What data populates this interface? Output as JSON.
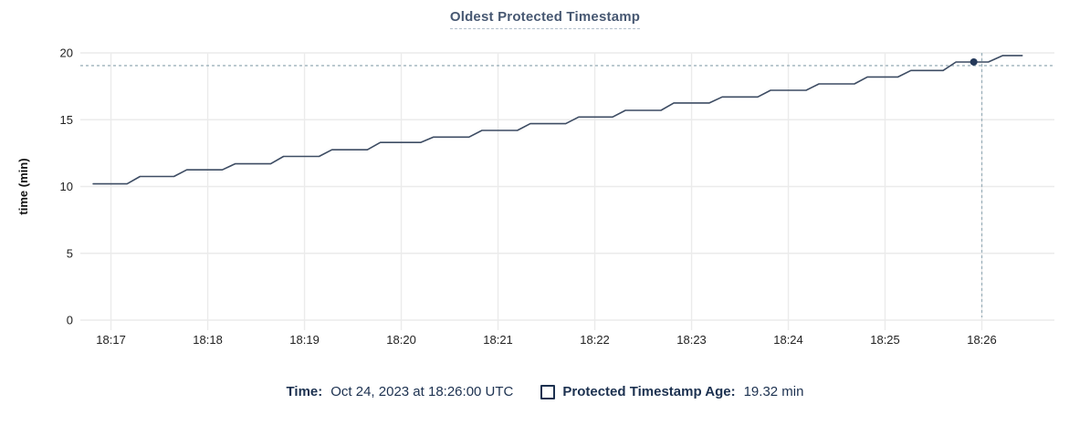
{
  "chart_data": {
    "type": "line",
    "title": "Oldest Protected Timestamp",
    "xlabel": "",
    "ylabel": "time (min)",
    "ylim": [
      0,
      20
    ],
    "y_ticks": [
      0,
      5,
      10,
      15,
      20
    ],
    "x_ticks": [
      "18:17",
      "18:18",
      "18:19",
      "18:20",
      "18:21",
      "18:22",
      "18:23",
      "18:24",
      "18:25",
      "18:26"
    ],
    "x_range": [
      "18:16:41",
      "18:26:45"
    ],
    "grid": true,
    "legend_position": "bottom",
    "series": [
      {
        "name": "Protected Timestamp Age",
        "unit": "min",
        "style": "step",
        "points": [
          [
            "18:16:49",
            10.2
          ],
          [
            "18:17:10",
            10.2
          ],
          [
            "18:17:18",
            10.75
          ],
          [
            "18:17:39",
            10.75
          ],
          [
            "18:17:47",
            11.25
          ],
          [
            "18:18:09",
            11.25
          ],
          [
            "18:18:17",
            11.7
          ],
          [
            "18:18:39",
            11.7
          ],
          [
            "18:18:47",
            12.25
          ],
          [
            "18:19:09",
            12.25
          ],
          [
            "18:19:17",
            12.75
          ],
          [
            "18:19:39",
            12.75
          ],
          [
            "18:19:47",
            13.3
          ],
          [
            "18:20:12",
            13.3
          ],
          [
            "18:20:20",
            13.7
          ],
          [
            "18:20:42",
            13.7
          ],
          [
            "18:20:50",
            14.2
          ],
          [
            "18:21:12",
            14.2
          ],
          [
            "18:21:20",
            14.7
          ],
          [
            "18:21:42",
            14.7
          ],
          [
            "18:21:50",
            15.2
          ],
          [
            "18:22:11",
            15.2
          ],
          [
            "18:22:19",
            15.7
          ],
          [
            "18:22:41",
            15.7
          ],
          [
            "18:22:49",
            16.25
          ],
          [
            "18:23:11",
            16.25
          ],
          [
            "18:23:19",
            16.7
          ],
          [
            "18:23:41",
            16.7
          ],
          [
            "18:23:49",
            17.2
          ],
          [
            "18:24:11",
            17.2
          ],
          [
            "18:24:19",
            17.68
          ],
          [
            "18:24:41",
            17.68
          ],
          [
            "18:24:49",
            18.2
          ],
          [
            "18:25:08",
            18.2
          ],
          [
            "18:25:16",
            18.68
          ],
          [
            "18:25:36",
            18.68
          ],
          [
            "18:25:44",
            19.32
          ],
          [
            "18:26:04",
            19.32
          ],
          [
            "18:26:13",
            19.8
          ],
          [
            "18:26:25",
            19.8
          ]
        ]
      }
    ],
    "crosshair": {
      "time": "18:26:00",
      "hover_value": 19.05,
      "point": {
        "time": "18:25:55",
        "value": 19.32
      }
    }
  },
  "legend": {
    "time_label": "Time:",
    "time_value": "Oct 24, 2023 at 18:26:00 UTC",
    "series_label": "Protected Timestamp Age:",
    "series_value": "19.32 min"
  },
  "colors": {
    "background": "#ffffff",
    "title": "#475872",
    "title_underline": "#b3c0cc",
    "line": "#3d4c63",
    "dot": "#24395a",
    "grid": "#ebebeb",
    "axis_text": "#222222",
    "crosshair": "#9db2bc",
    "legend_text": "#1c3150"
  }
}
